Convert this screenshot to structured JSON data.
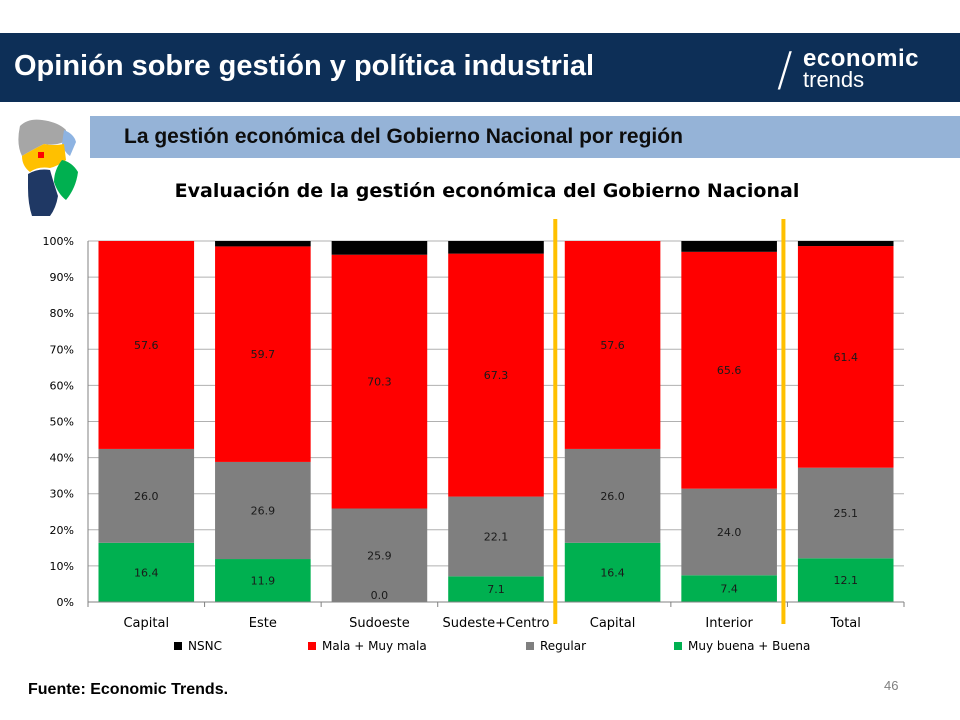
{
  "header": {
    "title": "Opinión sobre gestión y política industrial"
  },
  "logo": {
    "top": "economic",
    "bottom": "trends"
  },
  "subheader": {
    "title": "La gestión económica del Gobierno Nacional por región"
  },
  "footer": {
    "source": "Fuente: Economic Trends.",
    "page_number": "46"
  },
  "map": {
    "icon": "argentina-regions-map-icon",
    "colors": [
      "#a6a6a6",
      "#ffc000",
      "#00b050",
      "#1f3864",
      "#8db3e2",
      "#ff0000"
    ]
  },
  "chart_data": {
    "type": "bar",
    "stacked": true,
    "percent_stacked": true,
    "title": "Evaluación de la gestión económica del Gobierno Nacional",
    "categories": [
      "Capital",
      "Este",
      "Sudoeste",
      "Sudeste+Centro",
      "Capital",
      "Interior",
      "Total"
    ],
    "series": [
      {
        "name": "Muy buena + Buena",
        "color": "#00b050",
        "values": [
          16.4,
          11.9,
          0.0,
          7.1,
          16.4,
          7.4,
          12.1
        ]
      },
      {
        "name": "Regular",
        "color": "#7f7f7f",
        "values": [
          26.0,
          26.9,
          25.9,
          22.1,
          26.0,
          24.0,
          25.1
        ]
      },
      {
        "name": "Mala + Muy mala",
        "color": "#ff0000",
        "values": [
          57.6,
          59.7,
          70.3,
          67.3,
          57.6,
          65.6,
          61.4
        ]
      },
      {
        "name": "NSNC",
        "color": "#000000",
        "values": [
          0.0,
          1.5,
          3.8,
          3.5,
          0.0,
          3.0,
          1.4
        ]
      }
    ],
    "data_labels": {
      "Muy buena + Buena": [
        "16.4",
        "11.9",
        "0.0",
        "7.1",
        "16.4",
        "7.4",
        "12.1"
      ],
      "Regular": [
        "26.0",
        "26.9",
        "25.9",
        "22.1",
        "26.0",
        "24.0",
        "25.1"
      ],
      "Mala + Muy mala": [
        "57.6",
        "59.7",
        "70.3",
        "67.3",
        "57.6",
        "65.6",
        "61.4"
      ]
    },
    "legend_order": [
      "NSNC",
      "Mala + Muy mala",
      "Regular",
      "Muy buena + Buena"
    ],
    "legend_position": "bottom",
    "ylim": [
      0,
      100
    ],
    "yticks": [
      "0%",
      "10%",
      "20%",
      "30%",
      "40%",
      "50%",
      "60%",
      "70%",
      "80%",
      "90%",
      "100%"
    ],
    "grid": true,
    "separator_color": "#ffc000",
    "separators_after_category_index": [
      3,
      5
    ]
  }
}
